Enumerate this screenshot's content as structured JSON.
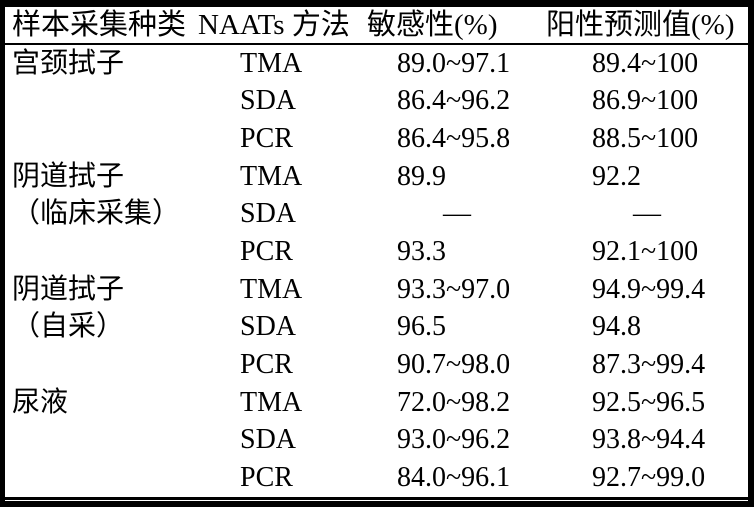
{
  "colors": {
    "border": "#000000",
    "background": "#ffffff",
    "text": "#000000"
  },
  "table": {
    "headers": {
      "sample_type": "样本采集种类",
      "method": "NAATs 方法",
      "sensitivity": "敏感性(%)",
      "ppv": "阳性预测值(%)"
    },
    "rows": [
      {
        "sample": "宫颈拭子",
        "method": "TMA",
        "sensitivity": "89.0~97.1",
        "ppv": "89.4~100"
      },
      {
        "sample": "",
        "method": "SDA",
        "sensitivity": "86.4~96.2",
        "ppv": "86.9~100"
      },
      {
        "sample": "",
        "method": "PCR",
        "sensitivity": "86.4~95.8",
        "ppv": "88.5~100"
      },
      {
        "sample": "阴道拭子",
        "method": "TMA",
        "sensitivity": "89.9",
        "ppv": "92.2"
      },
      {
        "sample": "（临床采集）",
        "method": "SDA",
        "sensitivity": "—",
        "ppv": "—"
      },
      {
        "sample": "",
        "method": "PCR",
        "sensitivity": "93.3",
        "ppv": "92.1~100"
      },
      {
        "sample": "阴道拭子",
        "method": "TMA",
        "sensitivity": "93.3~97.0",
        "ppv": "94.9~99.4"
      },
      {
        "sample": "（自采）",
        "method": "SDA",
        "sensitivity": "96.5",
        "ppv": "94.8"
      },
      {
        "sample": "",
        "method": "PCR",
        "sensitivity": "90.7~98.0",
        "ppv": "87.3~99.4"
      },
      {
        "sample": "尿液",
        "method": "TMA",
        "sensitivity": "72.0~98.2",
        "ppv": "92.5~96.5"
      },
      {
        "sample": "",
        "method": "SDA",
        "sensitivity": "93.0~96.2",
        "ppv": "93.8~94.4"
      },
      {
        "sample": "",
        "method": "PCR",
        "sensitivity": "84.0~96.1",
        "ppv": "92.7~99.0"
      }
    ]
  }
}
